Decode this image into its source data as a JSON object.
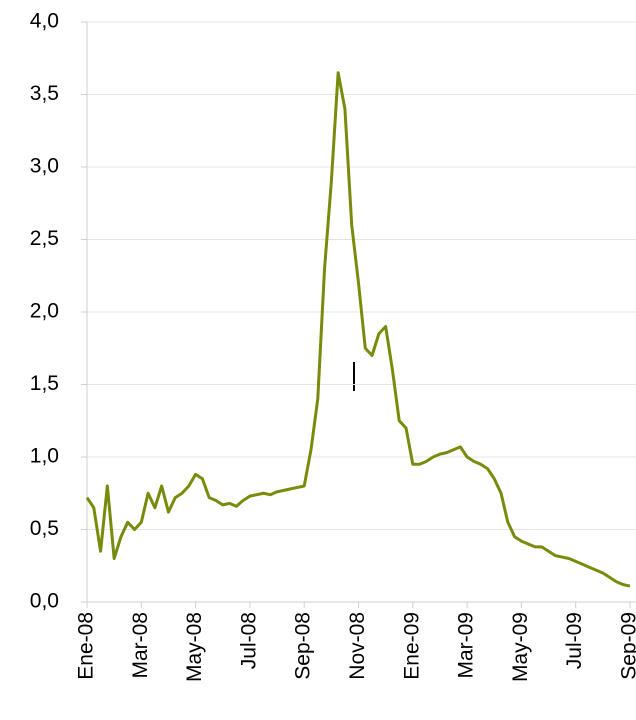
{
  "chart_data": {
    "type": "line",
    "categories": [
      "Ene-08",
      null,
      null,
      null,
      null,
      null,
      null,
      null,
      "Mar-08",
      null,
      null,
      null,
      null,
      null,
      null,
      null,
      "May-08",
      null,
      null,
      null,
      null,
      null,
      null,
      null,
      "Jul-08",
      null,
      null,
      null,
      null,
      null,
      null,
      null,
      "Sep-08",
      null,
      null,
      null,
      null,
      null,
      null,
      null,
      "Nov-08",
      null,
      null,
      null,
      null,
      null,
      null,
      null,
      "Ene-09",
      null,
      null,
      null,
      null,
      null,
      null,
      null,
      "Mar-09",
      null,
      null,
      null,
      null,
      null,
      null,
      null,
      "May-09",
      null,
      null,
      null,
      null,
      null,
      null,
      null,
      "Jul-09",
      null,
      null,
      null,
      null,
      null,
      null,
      null,
      "Sep-09"
    ],
    "series": [
      {
        "color": "#7a8a0a",
        "values": [
          0.72,
          0.65,
          0.35,
          0.8,
          0.3,
          0.45,
          0.55,
          0.5,
          0.55,
          0.75,
          0.65,
          0.8,
          0.62,
          0.72,
          0.75,
          0.8,
          0.88,
          0.85,
          0.72,
          0.7,
          0.67,
          0.68,
          0.66,
          0.7,
          0.73,
          0.74,
          0.75,
          0.74,
          0.76,
          0.77,
          0.78,
          0.79,
          0.8,
          1.05,
          1.4,
          2.3,
          2.9,
          3.65,
          3.4,
          2.6,
          2.2,
          1.75,
          1.7,
          1.85,
          1.9,
          1.6,
          1.25,
          1.2,
          0.95,
          0.95,
          0.97,
          1.0,
          1.02,
          1.03,
          1.05,
          1.07,
          1.0,
          0.97,
          0.95,
          0.92,
          0.85,
          0.75,
          0.55,
          0.45,
          0.42,
          0.4,
          0.38,
          0.38,
          0.35,
          0.32,
          0.31,
          0.3,
          0.28,
          0.26,
          0.24,
          0.22,
          0.2,
          0.17,
          0.14,
          0.12,
          0.11
        ]
      }
    ],
    "ylim": [
      0,
      4
    ],
    "yticks": [
      {
        "value": 0,
        "label": "0,0"
      },
      {
        "value": 0.5,
        "label": "0,5"
      },
      {
        "value": 1,
        "label": "1,0"
      },
      {
        "value": 1.5,
        "label": "1,5"
      },
      {
        "value": 2,
        "label": "2,0"
      },
      {
        "value": 2.5,
        "label": "2,5"
      },
      {
        "value": 3,
        "label": "3,0"
      },
      {
        "value": 3.5,
        "label": "3,5"
      },
      {
        "value": 4,
        "label": "4,0"
      }
    ],
    "grid": true
  }
}
